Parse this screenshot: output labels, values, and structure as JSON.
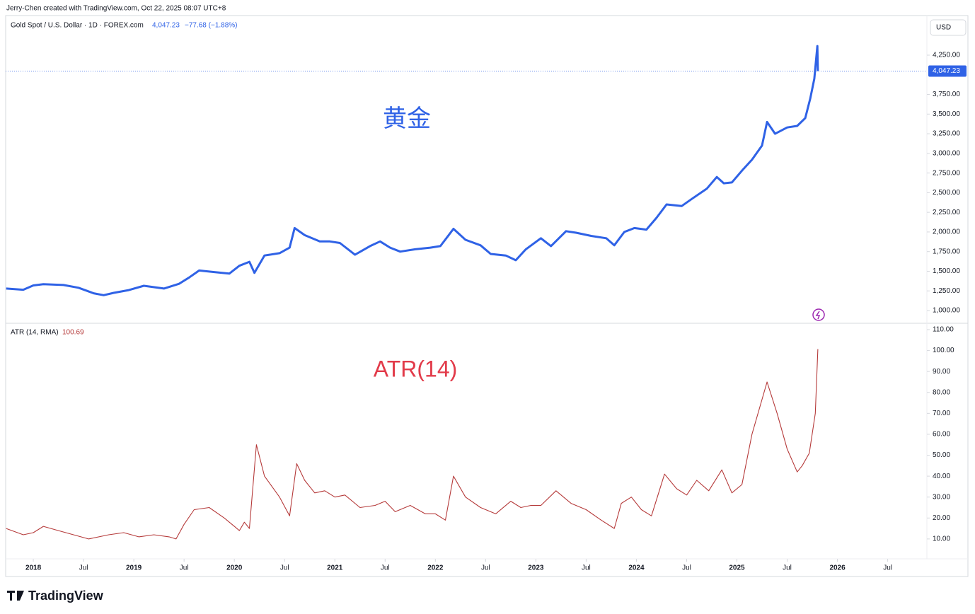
{
  "credit": "Jerry-Chen created with TradingView.com, Oct 22, 2025 08:07 UTC+8",
  "brand": "TradingView",
  "chart_data": [
    {
      "type": "line",
      "series": [
        {
          "name": "Gold Spot / U.S. Dollar · 1D · FOREX.com",
          "color": "#2f62e6",
          "values": [
            1280,
            1265,
            1320,
            1335,
            1325,
            1290,
            1220,
            1195,
            1225,
            1260,
            1315,
            1280,
            1340,
            1420,
            1510,
            1490,
            1470,
            1570,
            1620,
            1480,
            1700,
            1730,
            1800,
            2050,
            1960,
            1880,
            1880,
            1860,
            1710,
            1820,
            1880,
            1800,
            1750,
            1780,
            1800,
            1820,
            2040,
            1900,
            1830,
            1720,
            1700,
            1640,
            1780,
            1920,
            1820,
            2010,
            1990,
            1950,
            1920,
            1830,
            2000,
            2050,
            2030,
            2180,
            2350,
            2330,
            2420,
            2550,
            2700,
            2620,
            2630,
            2780,
            2920,
            3100,
            3400,
            3250,
            3330,
            3350,
            3450,
            3700,
            3950,
            4366,
            4047.23
          ]
        }
      ],
      "x": [
        2017.73,
        2017.9,
        2018.0,
        2018.1,
        2018.3,
        2018.45,
        2018.6,
        2018.7,
        2018.8,
        2018.95,
        2019.1,
        2019.3,
        2019.45,
        2019.55,
        2019.65,
        2019.8,
        2019.95,
        2020.05,
        2020.15,
        2020.2,
        2020.3,
        2020.45,
        2020.55,
        2020.6,
        2020.7,
        2020.85,
        2020.95,
        2021.05,
        2021.2,
        2021.35,
        2021.45,
        2021.55,
        2021.65,
        2021.8,
        2021.95,
        2022.05,
        2022.18,
        2022.3,
        2022.45,
        2022.55,
        2022.7,
        2022.8,
        2022.9,
        2023.05,
        2023.15,
        2023.3,
        2023.4,
        2023.55,
        2023.7,
        2023.78,
        2023.88,
        2023.98,
        2024.1,
        2024.2,
        2024.3,
        2024.45,
        2024.55,
        2024.7,
        2024.8,
        2024.87,
        2024.95,
        2025.05,
        2025.15,
        2025.25,
        2025.3,
        2025.38,
        2025.5,
        2025.6,
        2025.68,
        2025.73,
        2025.77,
        2025.8,
        2025.805
      ],
      "last_label": "4,047.23",
      "change": "−77.68 (−1.88%)",
      "currency_label": "USD",
      "annotation": "黄金",
      "xlim": [
        2017.725,
        2026.89
      ],
      "ylim": [
        847,
        4754
      ],
      "yticks": [
        {
          "value": 1000,
          "label": "1,000.00"
        },
        {
          "value": 1250,
          "label": "1,250.00"
        },
        {
          "value": 1500,
          "label": "1,500.00"
        },
        {
          "value": 1750,
          "label": "1,750.00"
        },
        {
          "value": 2000,
          "label": "2,000.00"
        },
        {
          "value": 2250,
          "label": "2,250.00"
        },
        {
          "value": 2500,
          "label": "2,500.00"
        },
        {
          "value": 2750,
          "label": "2,750.00"
        },
        {
          "value": 3000,
          "label": "3,000.00"
        },
        {
          "value": 3250,
          "label": "3,250.00"
        },
        {
          "value": 3500,
          "label": "3,500.00"
        },
        {
          "value": 3750,
          "label": "3,750.00"
        },
        {
          "value": 4250,
          "label": "4,250.00"
        }
      ],
      "grid": false
    },
    {
      "type": "line",
      "series": [
        {
          "name": "ATR (14, RMA)",
          "color": "#b53a3a",
          "values": [
            15,
            12,
            13,
            16,
            14,
            12,
            10,
            12,
            13,
            11,
            12,
            11,
            10,
            17,
            24,
            25,
            20,
            16,
            14,
            18,
            15,
            55,
            40,
            30,
            21,
            46,
            38,
            32,
            33,
            30,
            31,
            25,
            26,
            28,
            23,
            26,
            22,
            22,
            19,
            40,
            30,
            25,
            22,
            28,
            25,
            26,
            26,
            33,
            27,
            24,
            19,
            15,
            27,
            30,
            24,
            21,
            41,
            34,
            31,
            38,
            33,
            43,
            32,
            36,
            60,
            85,
            70,
            53,
            42,
            45,
            51,
            70,
            100.69
          ]
        }
      ],
      "x": [
        2017.73,
        2017.9,
        2018.0,
        2018.1,
        2018.25,
        2018.4,
        2018.55,
        2018.75,
        2018.9,
        2019.05,
        2019.2,
        2019.35,
        2019.42,
        2019.5,
        2019.6,
        2019.75,
        2019.9,
        2020.0,
        2020.05,
        2020.1,
        2020.15,
        2020.22,
        2020.3,
        2020.45,
        2020.55,
        2020.62,
        2020.7,
        2020.8,
        2020.9,
        2021.0,
        2021.1,
        2021.25,
        2021.4,
        2021.5,
        2021.6,
        2021.75,
        2021.9,
        2022.0,
        2022.1,
        2022.18,
        2022.3,
        2022.45,
        2022.6,
        2022.75,
        2022.85,
        2022.95,
        2023.05,
        2023.2,
        2023.35,
        2023.5,
        2023.65,
        2023.78,
        2023.85,
        2023.95,
        2024.05,
        2024.15,
        2024.28,
        2024.4,
        2024.5,
        2024.6,
        2024.72,
        2024.85,
        2024.95,
        2025.05,
        2025.15,
        2025.3,
        2025.4,
        2025.5,
        2025.6,
        2025.65,
        2025.72,
        2025.78,
        2025.805
      ],
      "annotation": "ATR(14)",
      "xlim": [
        2017.725,
        2026.89
      ],
      "ylim": [
        0.5,
        112.7
      ],
      "yticks": [
        {
          "value": 10,
          "label": "10.00"
        },
        {
          "value": 20,
          "label": "20.00"
        },
        {
          "value": 30,
          "label": "30.00"
        },
        {
          "value": 40,
          "label": "40.00"
        },
        {
          "value": 50,
          "label": "50.00"
        },
        {
          "value": 60,
          "label": "60.00"
        },
        {
          "value": 70,
          "label": "70.00"
        },
        {
          "value": 80,
          "label": "80.00"
        },
        {
          "value": 90,
          "label": "90.00"
        },
        {
          "value": 100,
          "label": "100.00"
        },
        {
          "value": 110,
          "label": "110.00"
        }
      ],
      "xticks": [
        2018,
        {
          "value": 2018.5,
          "label": "Jul"
        },
        2019,
        {
          "value": 2019.5,
          "label": "Jul"
        },
        2020,
        {
          "value": 2020.5,
          "label": "Jul"
        },
        2021,
        {
          "value": 2021.5,
          "label": "Jul"
        },
        2022,
        {
          "value": 2022.5,
          "label": "Jul"
        },
        2023,
        {
          "value": 2023.5,
          "label": "Jul"
        },
        2024,
        {
          "value": 2024.5,
          "label": "Jul"
        },
        2025,
        {
          "value": 2025.5,
          "label": "Jul"
        },
        2026,
        {
          "value": 2026.5,
          "label": "Jul"
        }
      ],
      "grid": false
    }
  ]
}
